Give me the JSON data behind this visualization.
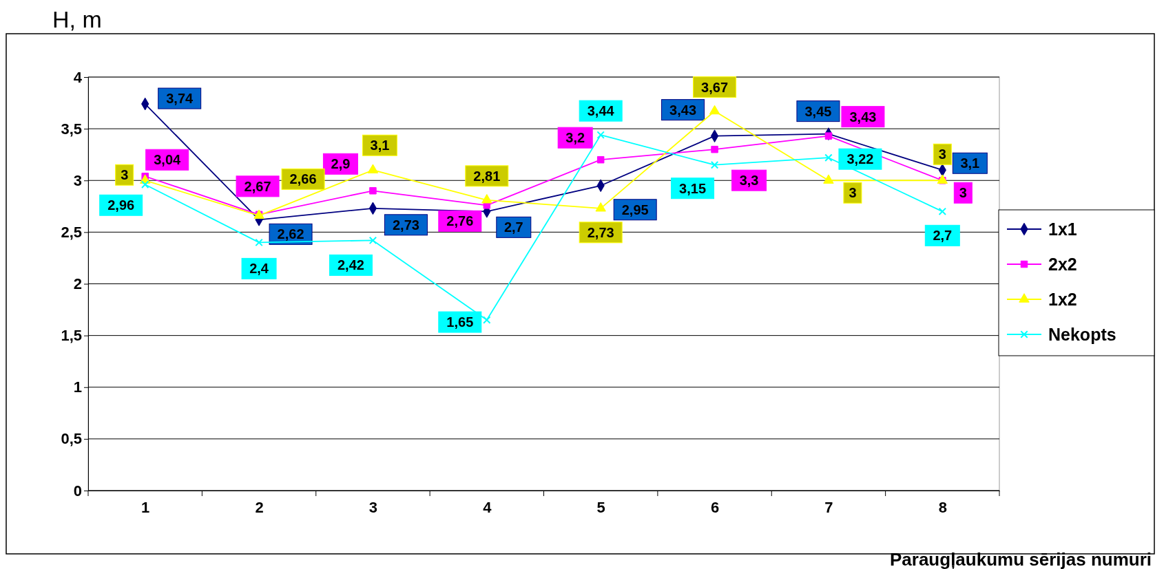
{
  "chart_data": {
    "type": "line",
    "ylabel": "H, m",
    "xlabel": "Paraugļaukumu sērijas numuri",
    "categories": [
      "1",
      "2",
      "3",
      "4",
      "5",
      "6",
      "7",
      "8"
    ],
    "ylim": [
      0,
      4
    ],
    "yticks": [
      {
        "value": 0,
        "label": "0"
      },
      {
        "value": 0.5,
        "label": "0,5"
      },
      {
        "value": 1,
        "label": "1"
      },
      {
        "value": 1.5,
        "label": "1,5"
      },
      {
        "value": 2,
        "label": "2"
      },
      {
        "value": 2.5,
        "label": "2,5"
      },
      {
        "value": 3,
        "label": "3"
      },
      {
        "value": 3.5,
        "label": "3,5"
      },
      {
        "value": 4,
        "label": "4"
      }
    ],
    "grid": "y",
    "legend": "right",
    "series": [
      {
        "name": "1x1",
        "color": "#000080",
        "marker": "diamond",
        "values": [
          3.74,
          2.62,
          2.73,
          2.7,
          2.95,
          3.43,
          3.45,
          3.1
        ],
        "value_labels": [
          "3,74",
          "2,62",
          "2,73",
          "2,7",
          "2,95",
          "3,43",
          "3,45",
          "3,1"
        ]
      },
      {
        "name": "2x2",
        "color": "#ff00ff",
        "marker": "square",
        "values": [
          3.04,
          2.67,
          2.9,
          2.76,
          3.2,
          3.3,
          3.43,
          3
        ],
        "value_labels": [
          "3,04",
          "2,67",
          "2,9",
          "2,76",
          "3,2",
          "3,3",
          "3,43",
          "3"
        ]
      },
      {
        "name": "1x2",
        "color": "#ffff00",
        "marker": "triangle",
        "values": [
          3,
          2.66,
          3.1,
          2.81,
          2.73,
          3.67,
          3,
          3
        ],
        "value_labels": [
          "3",
          "2,66",
          "3,1",
          "2,81",
          "2,73",
          "3,67",
          "3",
          "3"
        ]
      },
      {
        "name": "Nekopts",
        "color": "#00ffff",
        "marker": "cross",
        "values": [
          2.96,
          2.4,
          2.42,
          1.65,
          3.44,
          3.15,
          3.22,
          2.7
        ],
        "value_labels": [
          "2,96",
          "2,4",
          "2,42",
          "1,65",
          "3,44",
          "3,15",
          "3,22",
          "2,7"
        ]
      }
    ]
  }
}
